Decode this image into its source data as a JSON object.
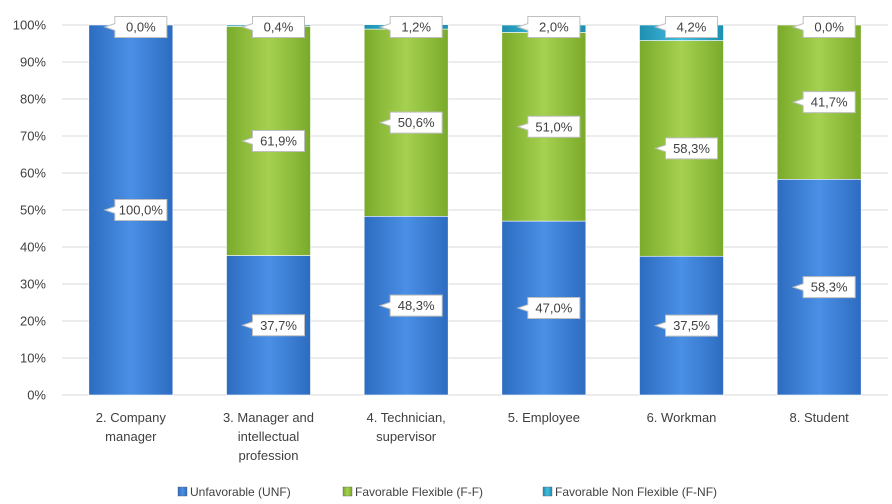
{
  "chart_data": {
    "type": "bar",
    "stacked": true,
    "categories": [
      [
        "2. Company",
        "manager"
      ],
      [
        "3. Manager and",
        "intellectual",
        "profession"
      ],
      [
        "4. Technician,",
        "supervisor"
      ],
      [
        "5. Employee"
      ],
      [
        "6. Workman"
      ],
      [
        "8. Student"
      ]
    ],
    "series": [
      {
        "name": "Unfavorable (UNF)",
        "values": [
          100.0,
          37.7,
          48.3,
          47.0,
          37.5,
          58.3
        ],
        "labels": [
          "100,0%",
          "37,7%",
          "48,3%",
          "47,0%",
          "37,5%",
          "58,3%"
        ],
        "color": "#3a80d9"
      },
      {
        "name": "Favorable Flexible (F-F)",
        "values": [
          0.0,
          61.9,
          50.6,
          51.0,
          58.3,
          41.7
        ],
        "labels": [
          "",
          "61,9%",
          "50,6%",
          "51,0%",
          "58,3%",
          "41,7%"
        ],
        "color": "#92c13e"
      },
      {
        "name": "Favorable Non Flexible (F-NF)",
        "values": [
          0.0,
          0.4,
          1.2,
          2.0,
          4.2,
          0.0
        ],
        "labels": [
          "0,0%",
          "0,4%",
          "1,2%",
          "2,0%",
          "4,2%",
          "0,0%"
        ],
        "color": "#2fa7c9"
      }
    ],
    "y_ticks": [
      "0%",
      "10%",
      "20%",
      "30%",
      "40%",
      "50%",
      "60%",
      "70%",
      "80%",
      "90%",
      "100%"
    ],
    "ylim": [
      0,
      100
    ],
    "grid": true,
    "legend_position": "bottom",
    "title": "",
    "xlabel": "",
    "ylabel": ""
  }
}
